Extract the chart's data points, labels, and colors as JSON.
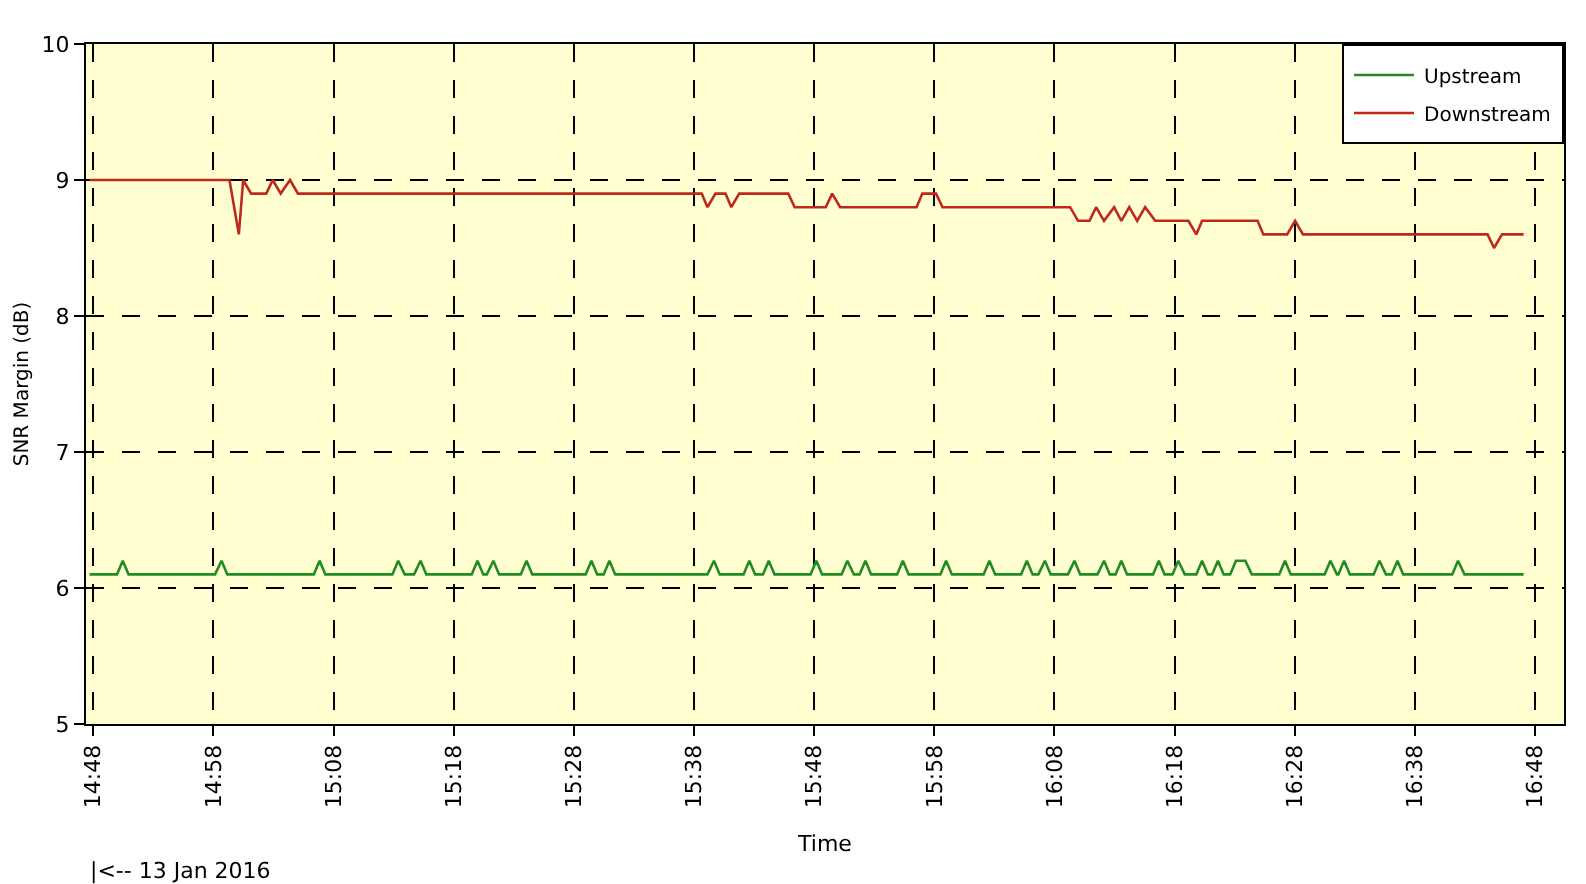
{
  "chart_data": {
    "type": "line",
    "xlabel": "Time",
    "ylabel": "SNR Margin (dB)",
    "annotations": [
      "|<-- 13 Jan 2016"
    ],
    "xlim": [
      14.79,
      16.84
    ],
    "ylim": [
      5,
      10
    ],
    "yticks": [
      5,
      6,
      7,
      8,
      9,
      10
    ],
    "xticks": [
      {
        "value": 14.8,
        "label": "14:48"
      },
      {
        "value": 14.9667,
        "label": "14:58"
      },
      {
        "value": 15.1333,
        "label": "15:08"
      },
      {
        "value": 15.3,
        "label": "15:18"
      },
      {
        "value": 15.4667,
        "label": "15:28"
      },
      {
        "value": 15.6333,
        "label": "15:38"
      },
      {
        "value": 15.8,
        "label": "15:48"
      },
      {
        "value": 15.9667,
        "label": "15:58"
      },
      {
        "value": 16.1333,
        "label": "16:08"
      },
      {
        "value": 16.3,
        "label": "16:18"
      },
      {
        "value": 16.4667,
        "label": "16:28"
      },
      {
        "value": 16.6333,
        "label": "16:38"
      },
      {
        "value": 16.8,
        "label": "16:48"
      }
    ],
    "grid": true,
    "legend": "top right",
    "marker": "none",
    "line_style": "solid",
    "series": [
      {
        "name": "Upstream",
        "color": "#238b23",
        "x": [
          14.795,
          14.833,
          14.841,
          14.849,
          14.969,
          14.978,
          14.986,
          15.106,
          15.114,
          15.122,
          15.215,
          15.223,
          15.232,
          15.245,
          15.254,
          15.262,
          15.325,
          15.333,
          15.341,
          15.346,
          15.355,
          15.363,
          15.393,
          15.401,
          15.409,
          15.483,
          15.491,
          15.499,
          15.508,
          15.516,
          15.524,
          15.652,
          15.661,
          15.669,
          15.702,
          15.71,
          15.718,
          15.729,
          15.737,
          15.745,
          15.795,
          15.803,
          15.811,
          15.838,
          15.846,
          15.855,
          15.863,
          15.871,
          15.879,
          15.915,
          15.923,
          15.931,
          15.975,
          15.983,
          15.991,
          16.035,
          16.043,
          16.051,
          16.087,
          16.095,
          16.103,
          16.111,
          16.12,
          16.128,
          16.152,
          16.161,
          16.169,
          16.193,
          16.202,
          16.21,
          16.218,
          16.226,
          16.234,
          16.27,
          16.278,
          16.286,
          16.297,
          16.305,
          16.314,
          16.33,
          16.338,
          16.346,
          16.352,
          16.36,
          16.368,
          16.377,
          16.385,
          16.398,
          16.407,
          16.445,
          16.453,
          16.461,
          16.508,
          16.516,
          16.525,
          16.527,
          16.535,
          16.543,
          16.576,
          16.584,
          16.593,
          16.601,
          16.609,
          16.617,
          16.685,
          16.693,
          16.702,
          16.784
        ],
        "values": [
          6.1,
          6.1,
          6.2,
          6.1,
          6.1,
          6.2,
          6.1,
          6.1,
          6.2,
          6.1,
          6.1,
          6.2,
          6.1,
          6.1,
          6.2,
          6.1,
          6.1,
          6.2,
          6.1,
          6.1,
          6.2,
          6.1,
          6.1,
          6.2,
          6.1,
          6.1,
          6.2,
          6.1,
          6.1,
          6.2,
          6.1,
          6.1,
          6.2,
          6.1,
          6.1,
          6.2,
          6.1,
          6.1,
          6.2,
          6.1,
          6.1,
          6.2,
          6.1,
          6.1,
          6.2,
          6.1,
          6.1,
          6.2,
          6.1,
          6.1,
          6.2,
          6.1,
          6.1,
          6.2,
          6.1,
          6.1,
          6.2,
          6.1,
          6.1,
          6.2,
          6.1,
          6.1,
          6.2,
          6.1,
          6.1,
          6.2,
          6.1,
          6.1,
          6.2,
          6.1,
          6.1,
          6.2,
          6.1,
          6.1,
          6.2,
          6.1,
          6.1,
          6.2,
          6.1,
          6.1,
          6.2,
          6.1,
          6.1,
          6.2,
          6.1,
          6.1,
          6.2,
          6.2,
          6.1,
          6.1,
          6.2,
          6.1,
          6.1,
          6.2,
          6.1,
          6.1,
          6.2,
          6.1,
          6.1,
          6.2,
          6.1,
          6.1,
          6.2,
          6.1,
          6.1,
          6.2,
          6.1,
          6.1
        ]
      },
      {
        "name": "Downstream",
        "color": "#c0281e",
        "x": [
          14.795,
          14.989,
          15.002,
          15.008,
          15.019,
          15.04,
          15.049,
          15.06,
          15.073,
          15.084,
          15.644,
          15.652,
          15.663,
          15.677,
          15.685,
          15.696,
          15.764,
          15.773,
          15.816,
          15.825,
          15.836,
          15.942,
          15.95,
          15.969,
          15.978,
          16.155,
          16.166,
          16.182,
          16.191,
          16.202,
          16.216,
          16.226,
          16.237,
          16.248,
          16.259,
          16.273,
          16.319,
          16.33,
          16.338,
          16.415,
          16.423,
          16.456,
          16.467,
          16.478,
          16.734,
          16.743,
          16.754,
          16.784
        ],
        "values": [
          9.0,
          9.0,
          8.6,
          9.0,
          8.9,
          8.9,
          9.0,
          8.9,
          9.0,
          8.9,
          8.9,
          8.8,
          8.9,
          8.9,
          8.8,
          8.9,
          8.9,
          8.8,
          8.8,
          8.9,
          8.8,
          8.8,
          8.9,
          8.9,
          8.8,
          8.8,
          8.7,
          8.7,
          8.8,
          8.7,
          8.8,
          8.7,
          8.8,
          8.7,
          8.8,
          8.7,
          8.7,
          8.6,
          8.7,
          8.7,
          8.6,
          8.6,
          8.7,
          8.6,
          8.6,
          8.5,
          8.6,
          8.6
        ]
      }
    ]
  }
}
